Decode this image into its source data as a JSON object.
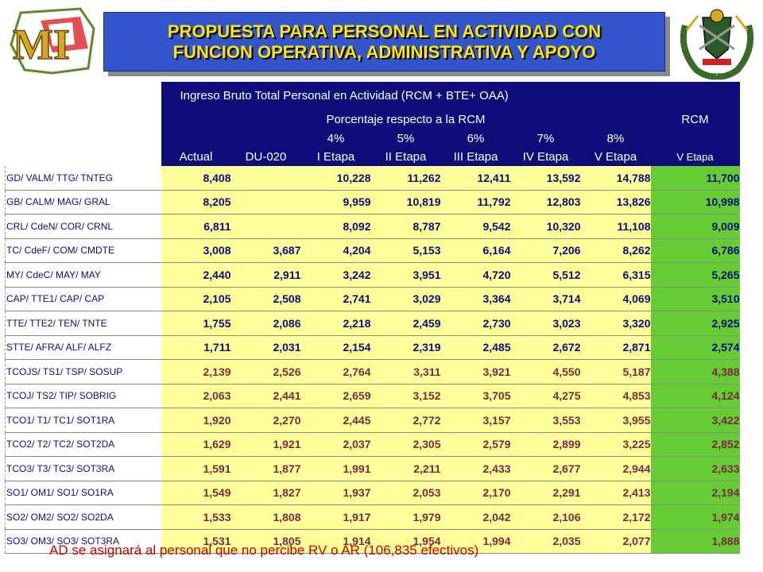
{
  "logos": {
    "left_text": "MI",
    "right_name": "army-crest"
  },
  "title": {
    "line1": "PROPUESTA PARA PERSONAL EN ACTIVIDAD CON",
    "line2": "FUNCION OPERATIVA, ADMINISTRATIVA Y APOYO"
  },
  "table": {
    "header_main": "Ingreso Bruto Total Personal en Actividad  (RCM + BTE+ OAA)",
    "header_pct": "Porcentaje respecto a la RCM",
    "header_rcm": "RCM",
    "pct_labels": [
      "4%",
      "5%",
      "6%",
      "7%",
      "8%"
    ],
    "col_labels": [
      "Actual",
      "DU-020",
      "I Etapa",
      "II Etapa",
      "III Etapa",
      "IV Etapa",
      "V Etapa",
      "V Etapa"
    ],
    "rows": [
      {
        "label": "GD/ VALM/ TTG/ TNTEG",
        "values": [
          "8,408",
          "",
          "10,228",
          "11,262",
          "12,411",
          "13,592",
          "14,788",
          "11,700"
        ]
      },
      {
        "label": "GB/ CALM/ MAG/ GRAL",
        "values": [
          "8,205",
          "",
          "9,959",
          "10,819",
          "11,792",
          "12,803",
          "13,826",
          "10,998"
        ]
      },
      {
        "label": "CRL/ CdeN/ COR/ CRNL",
        "values": [
          "6,811",
          "",
          "8,092",
          "8,787",
          "9,542",
          "10,320",
          "11,108",
          "9,009"
        ]
      },
      {
        "label": "TC/ CdeF/ COM/ CMDTE",
        "values": [
          "3,008",
          "3,687",
          "4,204",
          "5,153",
          "6,164",
          "7,206",
          "8,262",
          "6,786"
        ]
      },
      {
        "label": "MY/ CdeC/ MAY/ MAY",
        "values": [
          "2,440",
          "2,911",
          "3,242",
          "3,951",
          "4,720",
          "5,512",
          "6,315",
          "5,265"
        ]
      },
      {
        "label": "CAP/ TTE1/ CAP/ CAP",
        "values": [
          "2,105",
          "2,508",
          "2,741",
          "3,029",
          "3,364",
          "3,714",
          "4,069",
          "3,510"
        ]
      },
      {
        "label": "TTE/ TTE2/ TEN/ TNTE",
        "values": [
          "1,755",
          "2,086",
          "2,218",
          "2,459",
          "2,730",
          "3,023",
          "3,320",
          "2,925"
        ]
      },
      {
        "label": "STTE/ AFRA/ ALF/ ALFZ",
        "values": [
          "1,711",
          "2,031",
          "2,154",
          "2,319",
          "2,485",
          "2,672",
          "2,871",
          "2,574"
        ]
      },
      {
        "label": "TCOJS/ TS1/ TSP/ SOSUP",
        "values": [
          "2,139",
          "2,526",
          "2,764",
          "3,311",
          "3,921",
          "4,550",
          "5,187",
          "4,388"
        ]
      },
      {
        "label": "TCOJ/ TS2/ TIP/ SOBRIG",
        "values": [
          "2,063",
          "2,441",
          "2,659",
          "3,152",
          "3,705",
          "4,275",
          "4,853",
          "4,124"
        ]
      },
      {
        "label": "TCO1/ T1/ TC1/ SOT1RA",
        "values": [
          "1,920",
          "2,270",
          "2,445",
          "2,772",
          "3,157",
          "3,553",
          "3,955",
          "3,422"
        ]
      },
      {
        "label": "TCO2/ T2/ TC2/ SOT2DA",
        "values": [
          "1,629",
          "1,921",
          "2,037",
          "2,305",
          "2,579",
          "2,899",
          "3,225",
          "2,852"
        ]
      },
      {
        "label": "TCO3/ T3/ TC3/ SOT3RA",
        "values": [
          "1,591",
          "1,877",
          "1,991",
          "2,211",
          "2,433",
          "2,677",
          "2,944",
          "2,633"
        ]
      },
      {
        "label": "SO1/ OM1/ SO1/ SO1RA",
        "values": [
          "1,549",
          "1,827",
          "1,937",
          "2,053",
          "2,170",
          "2,291",
          "2,413",
          "2,194"
        ]
      },
      {
        "label": "SO2/ OM2/ SO2/ SO2DA",
        "values": [
          "1,533",
          "1,808",
          "1,917",
          "1,979",
          "2,042",
          "2,106",
          "2,172",
          "1,974"
        ]
      },
      {
        "label": "SO3/ OM3/ SO3/ SOT3RA",
        "values": [
          "1,531",
          "1,805",
          "1,914",
          "1,954",
          "1,994",
          "2,035",
          "2,077",
          "1,888"
        ]
      }
    ]
  },
  "footnote": "AD se asignará al personal que no percibe RV o AR (106,835 efectivos)",
  "colors": {
    "header_bg": "#0d0d7a",
    "title_bg": "#3355cc",
    "title_text": "#ffe600",
    "cell_bg": "#ffff99",
    "rcm_bg": "#66cc33",
    "footnote": "#cc0000"
  }
}
